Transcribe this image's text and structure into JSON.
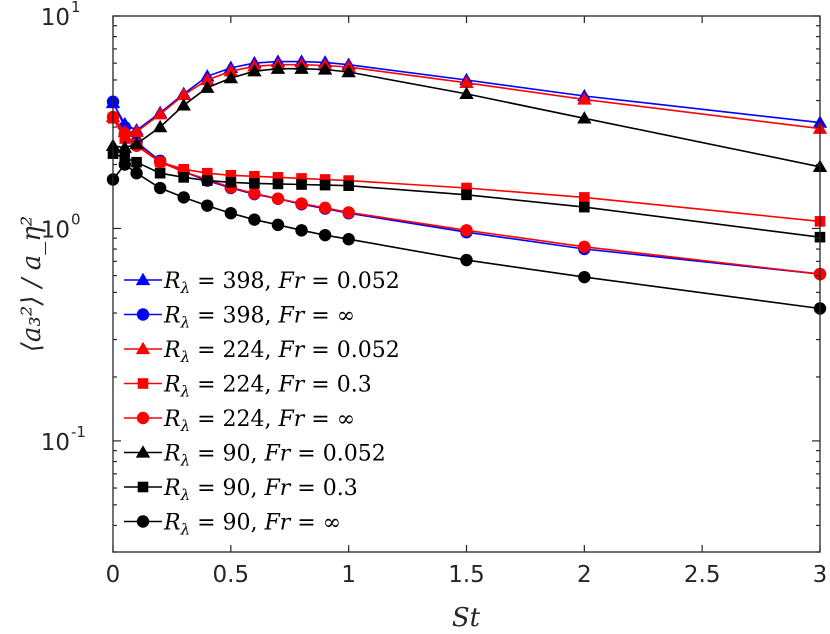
{
  "chart_data": {
    "type": "line",
    "title": "",
    "xlabel": "St",
    "ylabel": "⟨a₃²⟩ / a_η²",
    "yscale": "log",
    "xlim": [
      0,
      3
    ],
    "ylim": [
      0.03,
      10
    ],
    "grid": false,
    "legend_position": "bottom-left",
    "x_ticks": [
      0,
      0.5,
      1,
      1.5,
      2,
      2.5,
      3
    ],
    "x_tick_labels": [
      "0",
      "0.5",
      "1",
      "1.5",
      "2",
      "2.5",
      "3"
    ],
    "y_ticks": [
      0.1,
      1,
      10
    ],
    "y_tick_labels": [
      {
        "base": "10",
        "exp": "-1"
      },
      {
        "base": "10",
        "exp": "0"
      },
      {
        "base": "10",
        "exp": "1"
      }
    ],
    "series": [
      {
        "name": "R_λ = 398, Fr = 0.052",
        "label_R": "398",
        "label_Fr": "0.052",
        "color": "#0000ff",
        "marker": "triangle",
        "x": [
          0,
          0.05,
          0.1,
          0.2,
          0.3,
          0.4,
          0.5,
          0.6,
          0.7,
          0.8,
          0.9,
          1,
          1.5,
          2,
          3
        ],
        "y": [
          3.9,
          3.1,
          2.9,
          3.5,
          4.3,
          5.2,
          5.7,
          6.0,
          6.1,
          6.1,
          6.05,
          5.9,
          5.0,
          4.2,
          3.15
        ]
      },
      {
        "name": "R_λ = 398, Fr = ∞",
        "label_R": "398",
        "label_Fr": "∞",
        "color": "#0000ff",
        "marker": "circle",
        "x": [
          0,
          0.05,
          0.1,
          0.2,
          0.3,
          0.4,
          0.5,
          0.6,
          0.7,
          0.8,
          0.9,
          1,
          1.5,
          2,
          3
        ],
        "y": [
          3.95,
          3.0,
          2.55,
          2.08,
          1.85,
          1.68,
          1.55,
          1.45,
          1.38,
          1.3,
          1.24,
          1.18,
          0.96,
          0.8,
          0.61
        ]
      },
      {
        "name": "R_λ = 224, Fr = 0.052",
        "label_R": "224",
        "label_Fr": "0.052",
        "color": "#ff0000",
        "marker": "triangle",
        "x": [
          0,
          0.05,
          0.1,
          0.2,
          0.3,
          0.4,
          0.5,
          0.6,
          0.7,
          0.8,
          0.9,
          1,
          1.5,
          2,
          3
        ],
        "y": [
          3.35,
          2.85,
          2.85,
          3.45,
          4.25,
          5.0,
          5.5,
          5.8,
          5.9,
          5.9,
          5.85,
          5.75,
          4.85,
          4.05,
          2.95
        ]
      },
      {
        "name": "R_λ = 224, Fr = 0.3",
        "label_R": "224",
        "label_Fr": "0.3",
        "color": "#ff0000",
        "marker": "square",
        "x": [
          0,
          0.05,
          0.1,
          0.2,
          0.3,
          0.4,
          0.5,
          0.6,
          0.7,
          0.8,
          0.9,
          1,
          1.5,
          2,
          3
        ],
        "y": [
          3.3,
          2.65,
          2.5,
          2.05,
          1.9,
          1.82,
          1.78,
          1.76,
          1.74,
          1.72,
          1.7,
          1.68,
          1.55,
          1.4,
          1.08
        ]
      },
      {
        "name": "R_λ = 224, Fr = ∞",
        "label_R": "224",
        "label_Fr": "∞",
        "color": "#ff0000",
        "marker": "circle",
        "x": [
          0,
          0.05,
          0.1,
          0.2,
          0.3,
          0.4,
          0.5,
          0.6,
          0.7,
          0.8,
          0.9,
          1,
          1.5,
          2,
          3
        ],
        "y": [
          3.35,
          2.8,
          2.45,
          2.05,
          1.85,
          1.7,
          1.56,
          1.46,
          1.38,
          1.31,
          1.25,
          1.19,
          0.98,
          0.82,
          0.61
        ]
      },
      {
        "name": "R_λ = 90, Fr = 0.052",
        "label_R": "90",
        "label_Fr": "0.052",
        "color": "#000000",
        "marker": "triangle",
        "x": [
          0,
          0.05,
          0.1,
          0.2,
          0.3,
          0.4,
          0.5,
          0.6,
          0.7,
          0.8,
          0.9,
          1,
          1.5,
          2,
          3
        ],
        "y": [
          2.45,
          2.4,
          2.5,
          3.0,
          3.8,
          4.6,
          5.1,
          5.5,
          5.65,
          5.65,
          5.6,
          5.45,
          4.3,
          3.3,
          1.95
        ]
      },
      {
        "name": "R_λ = 90, Fr = 0.3",
        "label_R": "90",
        "label_Fr": "0.3",
        "color": "#000000",
        "marker": "square",
        "x": [
          0,
          0.05,
          0.1,
          0.2,
          0.3,
          0.4,
          0.5,
          0.6,
          0.7,
          0.8,
          0.9,
          1,
          1.5,
          2,
          3
        ],
        "y": [
          2.25,
          2.15,
          2.05,
          1.82,
          1.74,
          1.68,
          1.65,
          1.63,
          1.62,
          1.61,
          1.6,
          1.59,
          1.44,
          1.26,
          0.91
        ]
      },
      {
        "name": "R_λ = 90, Fr = ∞",
        "label_R": "90",
        "label_Fr": "∞",
        "color": "#000000",
        "marker": "circle",
        "x": [
          0,
          0.05,
          0.1,
          0.2,
          0.3,
          0.4,
          0.5,
          0.6,
          0.7,
          0.8,
          0.9,
          1,
          1.5,
          2,
          3
        ],
        "y": [
          1.7,
          2.0,
          1.82,
          1.55,
          1.4,
          1.28,
          1.18,
          1.1,
          1.04,
          0.98,
          0.93,
          0.89,
          0.71,
          0.59,
          0.42
        ]
      }
    ]
  }
}
